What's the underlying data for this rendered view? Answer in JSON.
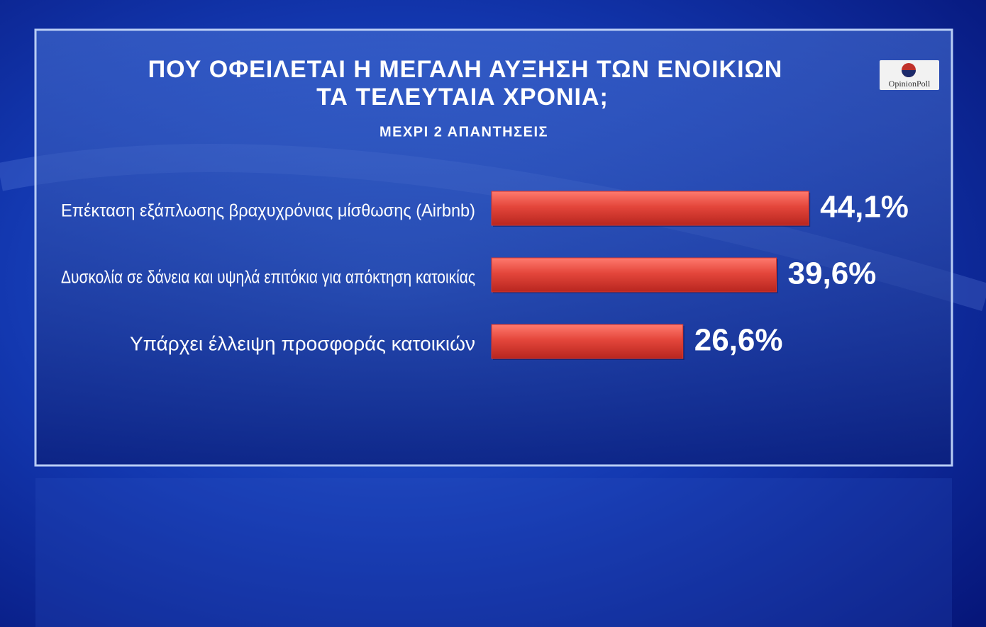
{
  "chart_data": {
    "type": "bar",
    "orientation": "horizontal",
    "title": [
      "ΠΟΥ ΟΦΕΙΛΕΤΑΙ Η ΜΕΓΑΛΗ ΑΥΞΗΣΗ ΤΩΝ ΕΝΟΙΚΙΩΝ",
      "ΤΑ ΤΕΛΕΥΤΑΙΑ ΧΡΟΝΙΑ;"
    ],
    "subtitle": "ΜΕΧΡΙ 2 ΑΠΑΝΤΗΣΕΙΣ",
    "source": "OpinionPoll",
    "categories": [
      "Επέκταση εξάπλωσης βραχυχρόνιας μίσθωσης (Airbnb)",
      "Δυσκολία σε δάνεια και υψηλά επιτόκια για απόκτηση κατοικίας",
      "Υπάρχει έλλειψη προσφοράς κατοικιών"
    ],
    "values": [
      44.1,
      39.6,
      26.6
    ],
    "value_labels": [
      "44,1%",
      "39,6%",
      "26,6%"
    ],
    "color": "#d9362c",
    "xlim": [
      0,
      50
    ]
  }
}
